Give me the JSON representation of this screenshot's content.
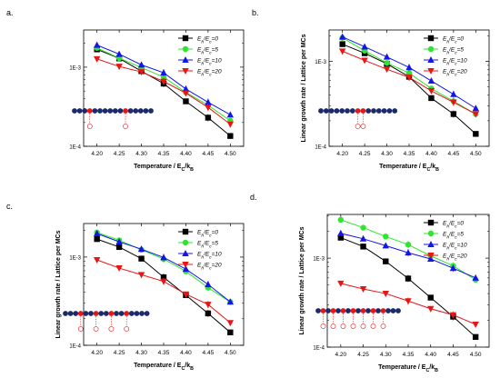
{
  "figure": {
    "panels": [
      {
        "id": "a",
        "label": "a.",
        "ylabel": "Linear growth rate / Lattice per MCs",
        "xlabel": "Temperature / E_C/k_B",
        "show_ylabel": false,
        "chain_type": "beads-1"
      },
      {
        "id": "b",
        "label": "b.",
        "ylabel": "Linear growth rate / Lattice per MCs",
        "xlabel": "Temperature / E_C/k_B",
        "show_ylabel": true,
        "chain_type": "beads-2"
      },
      {
        "id": "c",
        "label": "c.",
        "ylabel": "Linear growth rate / Lattice per MCs",
        "xlabel": "Temperature / E_C/k_B",
        "show_ylabel": true,
        "chain_type": "beads-3"
      },
      {
        "id": "d",
        "label": "d.",
        "ylabel": "Linear growth rate / Lattice per MCs",
        "xlabel": "Temperature / E_C/k_B",
        "show_ylabel": true,
        "chain_type": "beads-4"
      }
    ]
  },
  "chart_data": [
    {
      "type": "line",
      "panel": "a",
      "yscale": "log",
      "x": [
        4.2,
        4.25,
        4.3,
        4.35,
        4.4,
        4.45,
        4.5
      ],
      "xlim": [
        4.17,
        4.53
      ],
      "ylim": [
        0.0001,
        0.00295
      ],
      "xticks": [
        "4.20",
        "4.25",
        "4.30",
        "4.35",
        "4.40",
        "4.45",
        "4.50"
      ],
      "yticks": [
        {
          "value": 0.0001,
          "label": "1E-4"
        },
        {
          "value": 0.001,
          "label": "1E-3"
        }
      ],
      "series": [
        {
          "name": "E_h/E_c=0",
          "color": "#000000",
          "marker": "square",
          "values": [
            0.00168,
            0.00129,
            0.00089,
            0.00062,
            0.00037,
            0.00023,
            0.000135
          ]
        },
        {
          "name": "E_h/E_c=5",
          "color": "#2fe52f",
          "marker": "circle",
          "values": [
            0.00175,
            0.0013,
            0.00099,
            0.00075,
            0.00048,
            0.00033,
            0.00021
          ]
        },
        {
          "name": "E_h/E_c=10",
          "color": "#1515e8",
          "marker": "triangle-up",
          "values": [
            0.0019,
            0.00146,
            0.00107,
            0.00085,
            0.00053,
            0.00036,
            0.00025
          ]
        },
        {
          "name": "E_h/E_c=20",
          "color": "#e81515",
          "marker": "triangle-down",
          "values": [
            0.00127,
            0.00102,
            0.00087,
            0.00066,
            0.00047,
            0.00031,
            0.00019
          ]
        }
      ]
    },
    {
      "type": "line",
      "panel": "b",
      "yscale": "log",
      "x": [
        4.2,
        4.25,
        4.3,
        4.35,
        4.4,
        4.45,
        4.5
      ],
      "xlim": [
        4.17,
        4.53
      ],
      "ylim": [
        0.0001,
        0.00235
      ],
      "xticks": [
        "4.20",
        "4.25",
        "4.30",
        "4.35",
        "4.40",
        "4.45",
        "4.50"
      ],
      "yticks": [
        {
          "value": 0.0001,
          "label": "1E-4"
        },
        {
          "value": 0.001,
          "label": "1E-3"
        }
      ],
      "series": [
        {
          "name": "E_h/E_c=0",
          "color": "#000000",
          "marker": "square",
          "values": [
            0.0016,
            0.00125,
            0.00094,
            0.00066,
            0.00037,
            0.00024,
            0.00014
          ]
        },
        {
          "name": "E_h/E_c=5",
          "color": "#2fe52f",
          "marker": "circle",
          "values": [
            0.0019,
            0.00134,
            0.00096,
            0.00073,
            0.00048,
            0.00034,
            0.00024
          ]
        },
        {
          "name": "E_h/E_c=10",
          "color": "#1515e8",
          "marker": "triangle-up",
          "values": [
            0.00195,
            0.00149,
            0.00113,
            0.00085,
            0.00059,
            0.00041,
            0.00028
          ]
        },
        {
          "name": "E_h/E_c=20",
          "color": "#e81515",
          "marker": "triangle-down",
          "values": [
            0.00132,
            0.00103,
            0.00081,
            0.00065,
            0.00045,
            0.00033,
            0.00024
          ]
        }
      ]
    },
    {
      "type": "line",
      "panel": "c",
      "yscale": "log",
      "x": [
        4.2,
        4.25,
        4.3,
        4.35,
        4.4,
        4.45,
        4.5
      ],
      "xlim": [
        4.17,
        4.53
      ],
      "ylim": [
        0.0001,
        0.0024
      ],
      "xticks": [
        "4.20",
        "4.25",
        "4.30",
        "4.35",
        "4.40",
        "4.45",
        "4.50"
      ],
      "yticks": [
        {
          "value": 0.0001,
          "label": "1E-4"
        },
        {
          "value": 0.001,
          "label": "1E-3"
        }
      ],
      "series": [
        {
          "name": "E_h/E_c=0",
          "color": "#000000",
          "marker": "square",
          "values": [
            0.0016,
            0.0013,
            0.00096,
            0.00059,
            0.00037,
            0.00023,
            0.00014
          ]
        },
        {
          "name": "E_h/E_c=5",
          "color": "#2fe52f",
          "marker": "circle",
          "values": [
            0.0019,
            0.00155,
            0.00121,
            0.00095,
            0.00069,
            0.00045,
            0.00031
          ]
        },
        {
          "name": "E_h/E_c=10",
          "color": "#1515e8",
          "marker": "triangle-up",
          "values": [
            0.00185,
            0.00149,
            0.00123,
            0.00099,
            0.00073,
            0.00049,
            0.00031
          ]
        },
        {
          "name": "E_h/E_c=20",
          "color": "#e81515",
          "marker": "triangle-down",
          "values": [
            0.00093,
            0.00075,
            0.00063,
            0.00053,
            0.00038,
            0.00029,
            0.00018
          ]
        }
      ]
    },
    {
      "type": "line",
      "panel": "d",
      "yscale": "log",
      "x": [
        4.2,
        4.25,
        4.3,
        4.35,
        4.4,
        4.45,
        4.5
      ],
      "xlim": [
        4.17,
        4.53
      ],
      "ylim": [
        0.0001,
        0.0031
      ],
      "xticks": [
        "4.20",
        "4.25",
        "4.30",
        "4.35",
        "4.40",
        "4.45",
        "4.50"
      ],
      "yticks": [
        {
          "value": 0.0001,
          "label": "1E-4"
        },
        {
          "value": 0.001,
          "label": "1E-3"
        }
      ],
      "series": [
        {
          "name": "E_h/E_c=0",
          "color": "#000000",
          "marker": "square",
          "values": [
            0.0017,
            0.00135,
            0.00092,
            0.00059,
            0.00036,
            0.00022,
            0.00013
          ]
        },
        {
          "name": "E_h/E_c=5",
          "color": "#2fe52f",
          "marker": "circle",
          "values": [
            0.0027,
            0.0022,
            0.00175,
            0.00142,
            0.00106,
            0.00082,
            0.00057
          ]
        },
        {
          "name": "E_h/E_c=10",
          "color": "#1515e8",
          "marker": "triangle-up",
          "values": [
            0.0019,
            0.00165,
            0.00138,
            0.00115,
            0.00098,
            0.00077,
            0.0006
          ]
        },
        {
          "name": "E_h/E_c=20",
          "color": "#e81515",
          "marker": "triangle-down",
          "values": [
            0.00052,
            0.00045,
            0.0004,
            0.00033,
            0.00027,
            0.00023,
            0.00018
          ]
        }
      ]
    }
  ]
}
